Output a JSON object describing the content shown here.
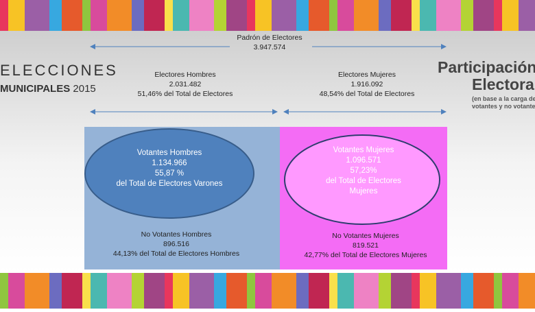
{
  "branding": {
    "line1": "ELECCIONES",
    "line2": "MUNICIPALES",
    "year": "2015"
  },
  "heading": {
    "line1": "Participación",
    "line2": "Electoral",
    "note1": "(en base a la carga de",
    "note2": "votantes y no votantes"
  },
  "total": {
    "label": "Padrón de Electores",
    "value": "3.947.574"
  },
  "men": {
    "label": "Electores Hombres",
    "value": "2.031.482",
    "share": "51,46% del Total de Electores",
    "voters": {
      "label": "Votantes Hombres",
      "value": "1.134.966",
      "share": "55,87 %",
      "of": "del Total de Electores Varones"
    },
    "non_voters": {
      "label": "No Votantes Hombres",
      "value": "896.516",
      "share": "44,13% del Total de Electores Hombres"
    }
  },
  "women": {
    "label": "Electores Mujeres",
    "value": "1.916.092",
    "share": "48,54% del Total de Electores",
    "voters": {
      "label": "Votantes Mujeres",
      "value": "1.096.571",
      "share": "57,23%",
      "of": "del Total de Electores",
      "of2": "Mujeres"
    },
    "non_voters": {
      "label": "No Votantes Mujeres",
      "value": "819.521",
      "share": "42,77% del Total de Electores Mujeres"
    }
  }
}
